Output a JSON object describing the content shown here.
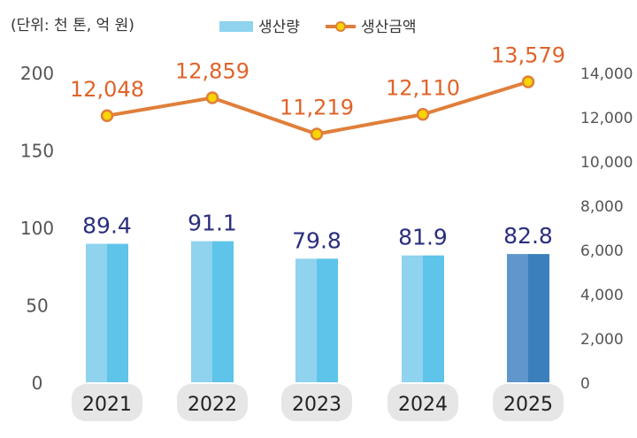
{
  "chart_data": {
    "type": "bar+line",
    "unit_note": "(단위: 천 톤, 억 원)",
    "categories": [
      "2021",
      "2022",
      "2023",
      "2024",
      "2025"
    ],
    "series": [
      {
        "name": "생산량",
        "type": "bar",
        "axis": "left",
        "values": [
          89.4,
          91.1,
          79.8,
          81.9,
          82.8
        ],
        "labels": [
          "89.4",
          "91.1",
          "79.8",
          "81.9",
          "82.8"
        ]
      },
      {
        "name": "생산금액",
        "type": "line",
        "axis": "right",
        "values": [
          12048,
          12859,
          11219,
          12110,
          13579
        ],
        "labels": [
          "12,048",
          "12,859",
          "11,219",
          "12,110",
          "13,579"
        ]
      }
    ],
    "left_axis": {
      "ylim": [
        0,
        200
      ],
      "ticks": [
        "0",
        "50",
        "100",
        "150",
        "200"
      ]
    },
    "right_axis": {
      "ylim": [
        0,
        14000
      ],
      "ticks": [
        "0",
        "2,000",
        "4,000",
        "6,000",
        "8,000",
        "10,000",
        "12,000",
        "14,000"
      ]
    },
    "legend_position": "top",
    "grid": false,
    "colors": {
      "bar_light": "#8fd3ef",
      "bar_dark": "#5ec4ea",
      "bar_highlight_light": "#5f96cc",
      "bar_highlight_dark": "#3b7fbc",
      "line": "#e07f3a",
      "marker": "#f7d500",
      "bar_label": "#2b2f7e",
      "line_label": "#e0632a",
      "pill": "#e6e6e6"
    }
  }
}
